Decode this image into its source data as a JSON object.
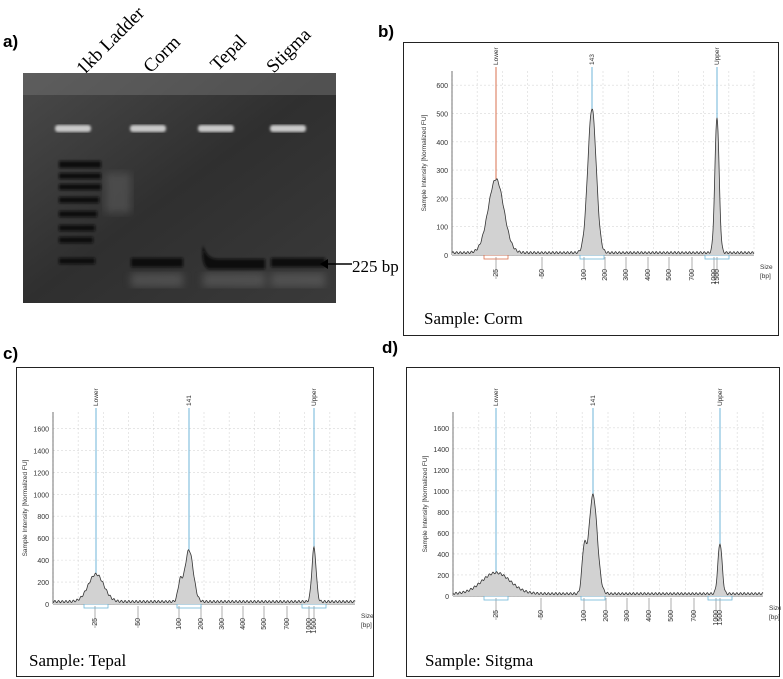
{
  "panel_labels": {
    "a": "a)",
    "b": "b)",
    "c": "c)",
    "d": "d)"
  },
  "gel": {
    "lanes": [
      "1kb Ladder",
      "Corm",
      "Tepal",
      "Stigma"
    ],
    "band_label": "225 bp"
  },
  "electropherograms": {
    "b": {
      "sample": "Sample: Corm",
      "ylabel": "Sample Intensity [Normalized FU]",
      "xlabel": "Size\n[bp]",
      "ymax": 650,
      "y_ticks": [
        "0",
        "100",
        "200",
        "300",
        "400",
        "500",
        "600"
      ],
      "x_ticks": [
        "25",
        "50",
        "100",
        "200",
        "300",
        "400",
        "500",
        "700",
        "1000",
        "1500"
      ],
      "markers": [
        "Lower",
        "143",
        "Upper"
      ],
      "peaks": [
        {
          "at": "25",
          "height": 260
        },
        {
          "at": "143",
          "height": 510
        },
        {
          "at": "1500",
          "height": 480
        }
      ]
    },
    "c": {
      "sample": "Sample: Tepal",
      "ylabel": "Sample Intensity [Normalized FU]",
      "xlabel": "Size\n[bp]",
      "ymax": 1750,
      "y_ticks": [
        "0",
        "200",
        "400",
        "600",
        "800",
        "1000",
        "1200",
        "1400",
        "1600"
      ],
      "x_ticks": [
        "25",
        "50",
        "100",
        "200",
        "300",
        "400",
        "500",
        "700",
        "1000",
        "1500"
      ],
      "markers": [
        "Lower",
        "141",
        "Upper"
      ],
      "peaks": [
        {
          "at": "25",
          "height": 250
        },
        {
          "at": "100",
          "height": 160
        },
        {
          "at": "141",
          "height": 470
        },
        {
          "at": "1500",
          "height": 490
        }
      ]
    },
    "d": {
      "sample": "Sample: Sitgma",
      "ylabel": "Sample Intensity [Normalized FU]",
      "xlabel": "Size\n[bp]",
      "ymax": 1750,
      "y_ticks": [
        "0",
        "200",
        "400",
        "600",
        "800",
        "1000",
        "1200",
        "1400",
        "1600"
      ],
      "x_ticks": [
        "25",
        "50",
        "100",
        "200",
        "300",
        "400",
        "500",
        "700",
        "1000",
        "1500"
      ],
      "markers": [
        "Lower",
        "141",
        "Upper"
      ],
      "peaks": [
        {
          "at": "25",
          "height": 200
        },
        {
          "at": "100",
          "height": 380
        },
        {
          "at": "141",
          "height": 940
        },
        {
          "at": "1500",
          "height": 480
        }
      ]
    }
  }
}
